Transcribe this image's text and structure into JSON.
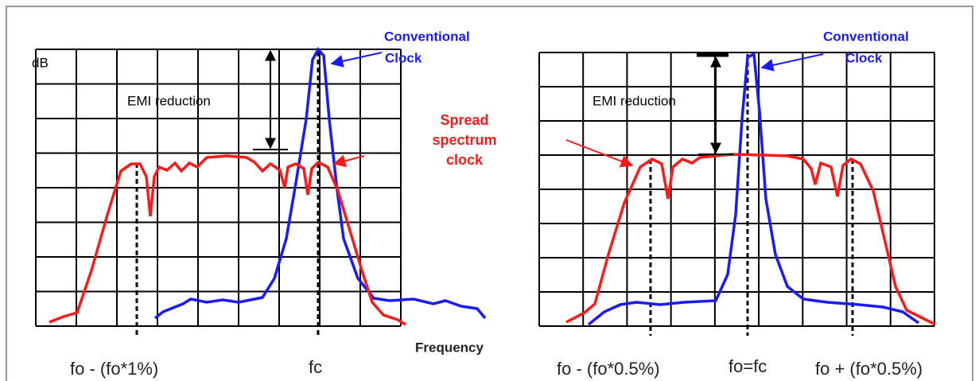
{
  "panels": [
    {
      "y_label": "dB",
      "emi_label": "EMI reduction",
      "conventional_label": [
        "Conventional",
        "Clock"
      ],
      "spread_label": [
        "Spread",
        "spectrum",
        "clock"
      ],
      "x_axis_label": "Frequency",
      "freq_labels": [
        "fo - (fo*1%)",
        "fc"
      ]
    },
    {
      "emi_label": "EMI reduction",
      "conventional_label": [
        "Conventional",
        "Clock"
      ],
      "freq_labels": [
        "fo - (fo*0.5%)",
        "fo=fc",
        "fo + (fo*0.5%)"
      ]
    }
  ]
}
